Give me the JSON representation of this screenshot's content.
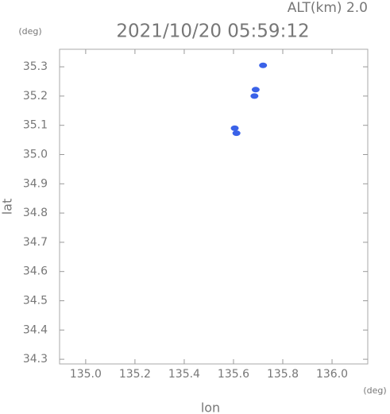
{
  "chart_data": {
    "type": "scatter",
    "title": "2021/10/20 05:59:12",
    "subtitle": "ALT(km) 2.0",
    "x_label": "lon",
    "y_label": "lat",
    "x_unit": "(deg)",
    "y_unit": "(deg)",
    "x": [
      135.72,
      135.69,
      135.685,
      135.605,
      135.612
    ],
    "values": [
      35.305,
      35.222,
      35.2,
      35.09,
      35.073
    ],
    "color": "#3a62e8",
    "xlim": [
      134.894,
      136.145
    ],
    "ylim": [
      34.284,
      35.36
    ],
    "xticks": [
      {
        "value": 135,
        "label": "135.0"
      },
      {
        "value": 135.2,
        "label": "135.2"
      },
      {
        "value": 135.4,
        "label": "135.4"
      },
      {
        "value": 135.6,
        "label": "135.6"
      },
      {
        "value": 135.8,
        "label": "135.8"
      },
      {
        "value": 136,
        "label": "136.0"
      }
    ],
    "yticks": [
      {
        "value": 34.3,
        "label": "34.3"
      },
      {
        "value": 34.4,
        "label": "34.4"
      },
      {
        "value": 34.5,
        "label": "34.5"
      },
      {
        "value": 34.6,
        "label": "34.6"
      },
      {
        "value": 34.7,
        "label": "34.7"
      },
      {
        "value": 34.8,
        "label": "34.8"
      },
      {
        "value": 34.9,
        "label": "34.9"
      },
      {
        "value": 35,
        "label": "35.0"
      },
      {
        "value": 35.1,
        "label": "35.1"
      },
      {
        "value": 35.2,
        "label": "35.2"
      },
      {
        "value": 35.3,
        "label": "35.3"
      }
    ]
  }
}
